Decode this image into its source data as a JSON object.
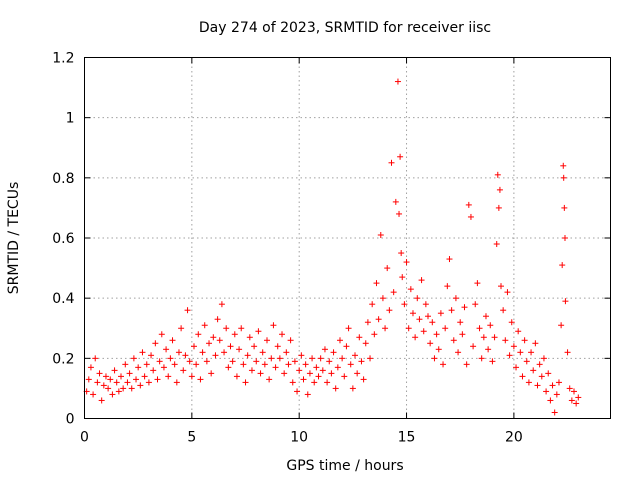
{
  "chart_data": {
    "type": "scatter",
    "title": "Day 274 of 2023, SRMTID for receiver iisc",
    "xlabel": "GPS time / hours",
    "ylabel": "SRMTID / TECUs",
    "xlim": [
      0,
      24.5
    ],
    "ylim": [
      0,
      1.2
    ],
    "xticks": [
      0,
      5,
      10,
      15,
      20
    ],
    "xtick_labels": [
      "0",
      "5",
      "10",
      "15",
      "20"
    ],
    "yticks": [
      0,
      0.2,
      0.4,
      0.6,
      0.8,
      1.0,
      1.2
    ],
    "ytick_labels": [
      "0",
      "0.2",
      "0.4",
      "0.6",
      "0.8",
      "1",
      "1.2"
    ],
    "grid": true,
    "marker": "+",
    "series": [
      {
        "name": "SRMTID",
        "color": "#ff0000",
        "points": [
          [
            0.1,
            0.09
          ],
          [
            0.2,
            0.13
          ],
          [
            0.3,
            0.17
          ],
          [
            0.4,
            0.08
          ],
          [
            0.5,
            0.2
          ],
          [
            0.6,
            0.12
          ],
          [
            0.7,
            0.15
          ],
          [
            0.8,
            0.06
          ],
          [
            0.9,
            0.11
          ],
          [
            1.0,
            0.14
          ],
          [
            1.1,
            0.1
          ],
          [
            1.2,
            0.13
          ],
          [
            1.3,
            0.08
          ],
          [
            1.4,
            0.16
          ],
          [
            1.5,
            0.12
          ],
          [
            1.6,
            0.09
          ],
          [
            1.7,
            0.14
          ],
          [
            1.8,
            0.1
          ],
          [
            1.9,
            0.18
          ],
          [
            2.0,
            0.12
          ],
          [
            2.1,
            0.15
          ],
          [
            2.2,
            0.1
          ],
          [
            2.3,
            0.2
          ],
          [
            2.4,
            0.13
          ],
          [
            2.5,
            0.17
          ],
          [
            2.6,
            0.11
          ],
          [
            2.7,
            0.22
          ],
          [
            2.8,
            0.14
          ],
          [
            2.9,
            0.18
          ],
          [
            3.0,
            0.12
          ],
          [
            3.1,
            0.21
          ],
          [
            3.2,
            0.16
          ],
          [
            3.3,
            0.25
          ],
          [
            3.4,
            0.13
          ],
          [
            3.5,
            0.19
          ],
          [
            3.6,
            0.28
          ],
          [
            3.7,
            0.17
          ],
          [
            3.8,
            0.23
          ],
          [
            3.9,
            0.14
          ],
          [
            4.0,
            0.2
          ],
          [
            4.1,
            0.26
          ],
          [
            4.2,
            0.18
          ],
          [
            4.3,
            0.12
          ],
          [
            4.4,
            0.22
          ],
          [
            4.5,
            0.3
          ],
          [
            4.6,
            0.16
          ],
          [
            4.7,
            0.21
          ],
          [
            4.8,
            0.36
          ],
          [
            4.9,
            0.19
          ],
          [
            5.0,
            0.14
          ],
          [
            5.1,
            0.24
          ],
          [
            5.2,
            0.18
          ],
          [
            5.3,
            0.28
          ],
          [
            5.4,
            0.13
          ],
          [
            5.5,
            0.22
          ],
          [
            5.6,
            0.31
          ],
          [
            5.7,
            0.19
          ],
          [
            5.8,
            0.25
          ],
          [
            5.9,
            0.15
          ],
          [
            6.0,
            0.27
          ],
          [
            6.1,
            0.21
          ],
          [
            6.2,
            0.33
          ],
          [
            6.3,
            0.26
          ],
          [
            6.4,
            0.38
          ],
          [
            6.5,
            0.22
          ],
          [
            6.6,
            0.3
          ],
          [
            6.7,
            0.17
          ],
          [
            6.8,
            0.24
          ],
          [
            6.9,
            0.19
          ],
          [
            7.0,
            0.28
          ],
          [
            7.1,
            0.14
          ],
          [
            7.2,
            0.23
          ],
          [
            7.3,
            0.3
          ],
          [
            7.4,
            0.18
          ],
          [
            7.5,
            0.12
          ],
          [
            7.6,
            0.21
          ],
          [
            7.7,
            0.27
          ],
          [
            7.8,
            0.16
          ],
          [
            7.9,
            0.24
          ],
          [
            8.0,
            0.19
          ],
          [
            8.1,
            0.29
          ],
          [
            8.2,
            0.15
          ],
          [
            8.3,
            0.22
          ],
          [
            8.4,
            0.18
          ],
          [
            8.5,
            0.26
          ],
          [
            8.6,
            0.13
          ],
          [
            8.7,
            0.2
          ],
          [
            8.8,
            0.31
          ],
          [
            8.9,
            0.17
          ],
          [
            9.0,
            0.24
          ],
          [
            9.1,
            0.2
          ],
          [
            9.2,
            0.28
          ],
          [
            9.3,
            0.15
          ],
          [
            9.4,
            0.22
          ],
          [
            9.5,
            0.18
          ],
          [
            9.6,
            0.26
          ],
          [
            9.7,
            0.12
          ],
          [
            9.8,
            0.19
          ],
          [
            9.9,
            0.09
          ],
          [
            10.0,
            0.16
          ],
          [
            10.1,
            0.21
          ],
          [
            10.2,
            0.13
          ],
          [
            10.3,
            0.18
          ],
          [
            10.4,
            0.08
          ],
          [
            10.5,
            0.15
          ],
          [
            10.6,
            0.2
          ],
          [
            10.7,
            0.12
          ],
          [
            10.8,
            0.17
          ],
          [
            10.9,
            0.14
          ],
          [
            11.0,
            0.2
          ],
          [
            11.1,
            0.16
          ],
          [
            11.2,
            0.23
          ],
          [
            11.3,
            0.12
          ],
          [
            11.4,
            0.19
          ],
          [
            11.5,
            0.15
          ],
          [
            11.6,
            0.22
          ],
          [
            11.7,
            0.1
          ],
          [
            11.8,
            0.17
          ],
          [
            11.9,
            0.26
          ],
          [
            12.0,
            0.2
          ],
          [
            12.1,
            0.14
          ],
          [
            12.2,
            0.24
          ],
          [
            12.3,
            0.3
          ],
          [
            12.4,
            0.18
          ],
          [
            12.5,
            0.1
          ],
          [
            12.6,
            0.21
          ],
          [
            12.7,
            0.15
          ],
          [
            12.8,
            0.27
          ],
          [
            12.9,
            0.19
          ],
          [
            13.0,
            0.13
          ],
          [
            13.1,
            0.25
          ],
          [
            13.2,
            0.32
          ],
          [
            13.3,
            0.2
          ],
          [
            13.4,
            0.38
          ],
          [
            13.5,
            0.28
          ],
          [
            13.6,
            0.45
          ],
          [
            13.7,
            0.33
          ],
          [
            13.8,
            0.61
          ],
          [
            13.9,
            0.4
          ],
          [
            14.0,
            0.3
          ],
          [
            14.1,
            0.5
          ],
          [
            14.2,
            0.36
          ],
          [
            14.3,
            0.85
          ],
          [
            14.4,
            0.42
          ],
          [
            14.5,
            0.72
          ],
          [
            14.6,
            1.12
          ],
          [
            14.65,
            0.68
          ],
          [
            14.7,
            0.87
          ],
          [
            14.75,
            0.55
          ],
          [
            14.8,
            0.47
          ],
          [
            14.9,
            0.38
          ],
          [
            15.0,
            0.52
          ],
          [
            15.1,
            0.3
          ],
          [
            15.2,
            0.43
          ],
          [
            15.3,
            0.35
          ],
          [
            15.4,
            0.27
          ],
          [
            15.5,
            0.4
          ],
          [
            15.6,
            0.33
          ],
          [
            15.7,
            0.46
          ],
          [
            15.8,
            0.29
          ],
          [
            15.9,
            0.38
          ],
          [
            16.0,
            0.34
          ],
          [
            16.1,
            0.25
          ],
          [
            16.2,
            0.32
          ],
          [
            16.3,
            0.2
          ],
          [
            16.4,
            0.28
          ],
          [
            16.5,
            0.23
          ],
          [
            16.6,
            0.35
          ],
          [
            16.7,
            0.18
          ],
          [
            16.8,
            0.3
          ],
          [
            16.9,
            0.44
          ],
          [
            17.0,
            0.53
          ],
          [
            17.1,
            0.36
          ],
          [
            17.2,
            0.26
          ],
          [
            17.3,
            0.4
          ],
          [
            17.4,
            0.22
          ],
          [
            17.5,
            0.32
          ],
          [
            17.6,
            0.28
          ],
          [
            17.7,
            0.37
          ],
          [
            17.8,
            0.18
          ],
          [
            17.9,
            0.71
          ],
          [
            18.0,
            0.67
          ],
          [
            18.1,
            0.24
          ],
          [
            18.2,
            0.38
          ],
          [
            18.3,
            0.45
          ],
          [
            18.4,
            0.3
          ],
          [
            18.5,
            0.2
          ],
          [
            18.6,
            0.27
          ],
          [
            18.7,
            0.34
          ],
          [
            18.8,
            0.23
          ],
          [
            18.9,
            0.31
          ],
          [
            19.0,
            0.19
          ],
          [
            19.1,
            0.27
          ],
          [
            19.2,
            0.58
          ],
          [
            19.25,
            0.81
          ],
          [
            19.3,
            0.7
          ],
          [
            19.35,
            0.76
          ],
          [
            19.4,
            0.44
          ],
          [
            19.5,
            0.36
          ],
          [
            19.6,
            0.26
          ],
          [
            19.7,
            0.42
          ],
          [
            19.8,
            0.21
          ],
          [
            19.9,
            0.32
          ],
          [
            20.0,
            0.24
          ],
          [
            20.1,
            0.17
          ],
          [
            20.2,
            0.29
          ],
          [
            20.3,
            0.22
          ],
          [
            20.4,
            0.14
          ],
          [
            20.5,
            0.26
          ],
          [
            20.6,
            0.19
          ],
          [
            20.7,
            0.12
          ],
          [
            20.8,
            0.22
          ],
          [
            20.9,
            0.16
          ],
          [
            21.0,
            0.25
          ],
          [
            21.1,
            0.11
          ],
          [
            21.2,
            0.18
          ],
          [
            21.3,
            0.14
          ],
          [
            21.4,
            0.2
          ],
          [
            21.5,
            0.09
          ],
          [
            21.6,
            0.15
          ],
          [
            21.7,
            0.06
          ],
          [
            21.8,
            0.11
          ],
          [
            21.9,
            0.02
          ],
          [
            22.0,
            0.08
          ],
          [
            22.1,
            0.12
          ],
          [
            22.2,
            0.31
          ],
          [
            22.25,
            0.51
          ],
          [
            22.3,
            0.84
          ],
          [
            22.32,
            0.8
          ],
          [
            22.35,
            0.7
          ],
          [
            22.38,
            0.6
          ],
          [
            22.4,
            0.39
          ],
          [
            22.5,
            0.22
          ],
          [
            22.6,
            0.1
          ],
          [
            22.7,
            0.06
          ],
          [
            22.8,
            0.09
          ],
          [
            22.9,
            0.05
          ],
          [
            23.0,
            0.07
          ]
        ]
      }
    ]
  }
}
